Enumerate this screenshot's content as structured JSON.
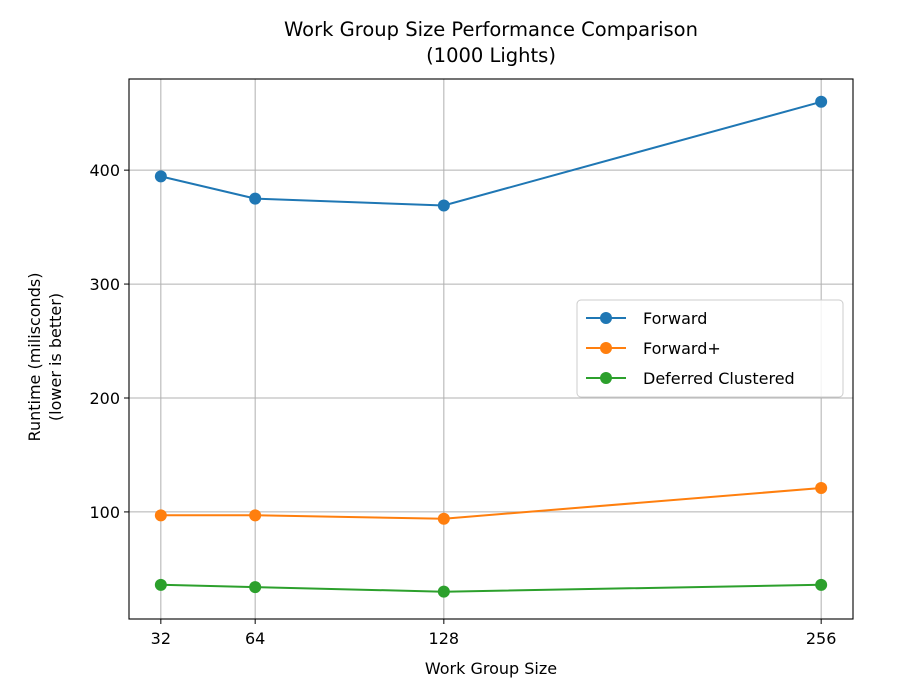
{
  "chart_data": {
    "type": "line",
    "title": "Work Group Size Performance Comparison\n(1000 Lights)",
    "xlabel": "Work Group Size",
    "ylabel": "Runtime (milisconds)\n(lower is better)",
    "x": [
      32,
      64,
      128,
      256
    ],
    "xticks": [
      "32",
      "64",
      "128",
      "256"
    ],
    "yticks": [
      100,
      200,
      300,
      400
    ],
    "xlim": [
      21.2,
      266.8
    ],
    "ylim": [
      6,
      480
    ],
    "grid": true,
    "legend_position": "center-right",
    "series": [
      {
        "name": "Forward",
        "color": "#1f77b4",
        "values": [
          394.5,
          375,
          369,
          460
        ]
      },
      {
        "name": "Forward+",
        "color": "#ff7f0e",
        "values": [
          97,
          97,
          94,
          121
        ]
      },
      {
        "name": "Deferred Clustered",
        "color": "#2ca02c",
        "values": [
          36,
          34,
          30,
          36
        ]
      }
    ]
  }
}
